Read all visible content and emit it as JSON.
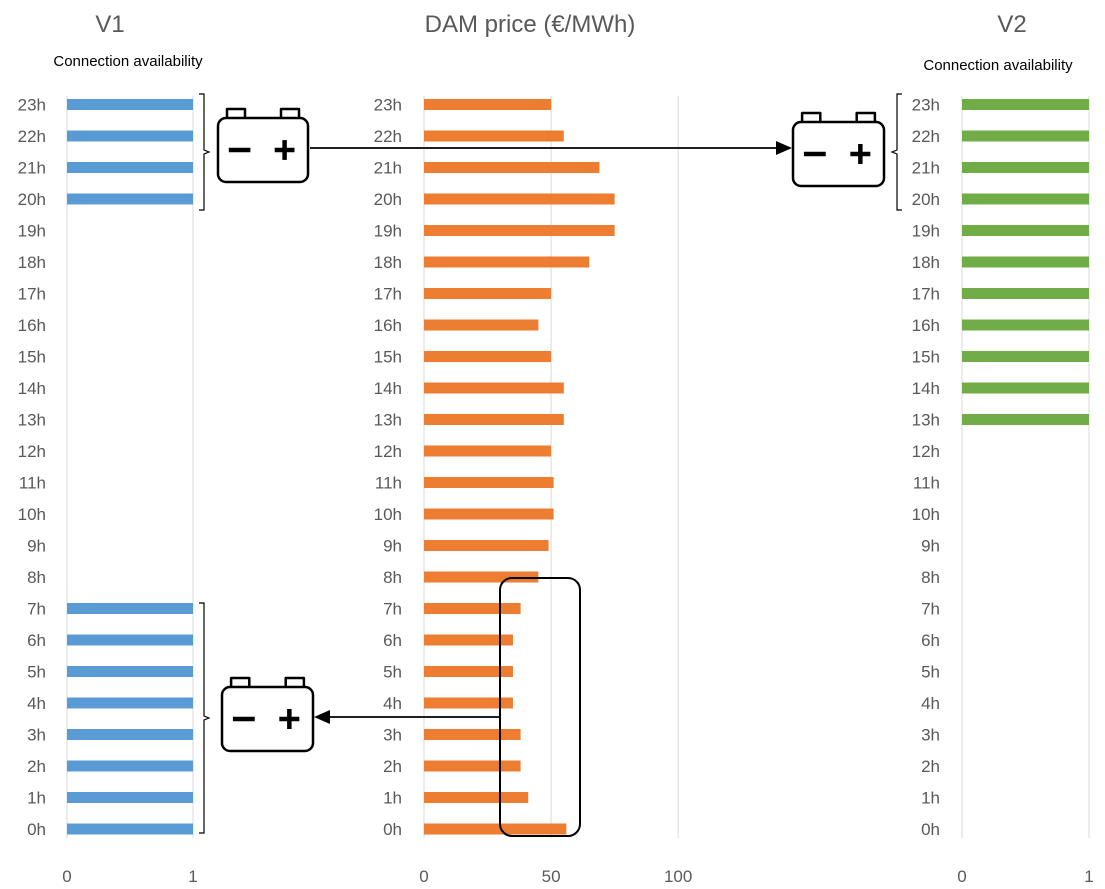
{
  "chart_data": [
    {
      "type": "bar",
      "orientation": "horizontal",
      "title": "V1",
      "subtitle": "Connection availability",
      "categories": [
        "0h",
        "1h",
        "2h",
        "3h",
        "4h",
        "5h",
        "6h",
        "7h",
        "8h",
        "9h",
        "10h",
        "11h",
        "12h",
        "13h",
        "14h",
        "15h",
        "16h",
        "17h",
        "18h",
        "19h",
        "20h",
        "21h",
        "22h",
        "23h"
      ],
      "values": [
        1,
        1,
        1,
        1,
        1,
        1,
        1,
        1,
        0,
        0,
        0,
        0,
        0,
        0,
        0,
        0,
        0,
        0,
        0,
        0,
        1,
        1,
        1,
        1
      ],
      "xlim": [
        0,
        1
      ],
      "xticks": [
        "0",
        "1"
      ],
      "color": "#5b9bd5",
      "grid": true
    },
    {
      "type": "bar",
      "orientation": "horizontal",
      "title": "DAM price (€/MWh)",
      "categories": [
        "0h",
        "1h",
        "2h",
        "3h",
        "4h",
        "5h",
        "6h",
        "7h",
        "8h",
        "9h",
        "10h",
        "11h",
        "12h",
        "13h",
        "14h",
        "15h",
        "16h",
        "17h",
        "18h",
        "19h",
        "20h",
        "21h",
        "22h",
        "23h"
      ],
      "values": [
        56,
        41,
        38,
        38,
        35,
        35,
        35,
        38,
        45,
        49,
        51,
        51,
        50,
        55,
        55,
        50,
        45,
        50,
        65,
        75,
        75,
        69,
        55,
        50
      ],
      "xlim": [
        0,
        120
      ],
      "xticks": [
        "0",
        "50",
        "100"
      ],
      "color": "#ed7d31",
      "grid": true
    },
    {
      "type": "bar",
      "orientation": "horizontal",
      "title": "V2",
      "subtitle": "Connection availability",
      "categories": [
        "0h",
        "1h",
        "2h",
        "3h",
        "4h",
        "5h",
        "6h",
        "7h",
        "8h",
        "9h",
        "10h",
        "11h",
        "12h",
        "13h",
        "14h",
        "15h",
        "16h",
        "17h",
        "18h",
        "19h",
        "20h",
        "21h",
        "22h",
        "23h"
      ],
      "values": [
        0,
        0,
        0,
        0,
        0,
        0,
        0,
        0,
        0,
        0,
        0,
        0,
        0,
        1,
        1,
        1,
        1,
        1,
        1,
        1,
        1,
        1,
        1,
        1
      ],
      "xlim": [
        0,
        1
      ],
      "xticks": [
        "0",
        "1"
      ],
      "color": "#70ad47",
      "grid": true
    }
  ],
  "annotations": {
    "battery_icon_name": "battery-icon",
    "battery_minus": "−",
    "battery_plus": "+",
    "stroke_color": "#000000"
  }
}
